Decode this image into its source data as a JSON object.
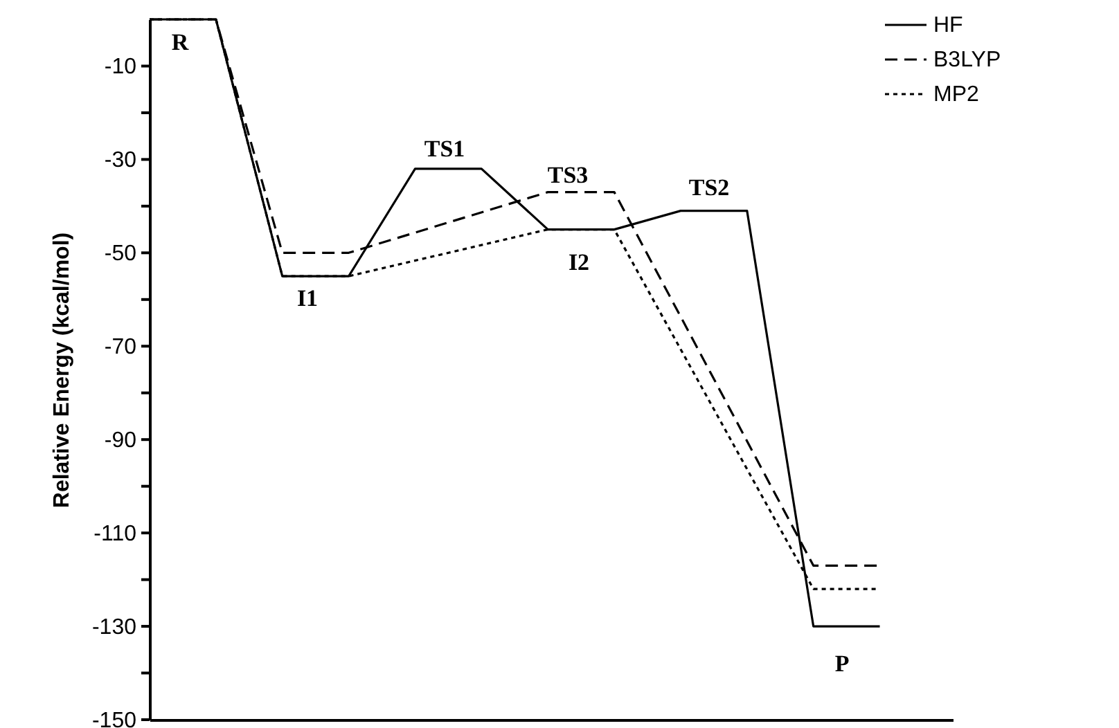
{
  "chart_data": {
    "type": "line",
    "ylabel": "Relative    Energy    (kcal/mol)",
    "categories": [
      null,
      null,
      null,
      null,
      null,
      null,
      null,
      null,
      null,
      null,
      null,
      null
    ],
    "ylim": [
      -150,
      0
    ],
    "yticks": [
      -150,
      {
        "value": -140,
        "label": null
      },
      -130,
      {
        "value": -120,
        "label": null
      },
      -110,
      {
        "value": -100,
        "label": null
      },
      -90,
      {
        "value": -80,
        "label": null
      },
      -70,
      {
        "value": -60,
        "label": null
      },
      -50,
      {
        "value": -40,
        "label": null
      },
      -30,
      {
        "value": -20,
        "label": null
      },
      -10
    ],
    "tick_labels": "y",
    "grid": false,
    "legend": "top right",
    "marker": "none",
    "series": [
      {
        "name": "HF",
        "color": "#000000",
        "line_style": "solid",
        "values": [
          0,
          0,
          -55,
          -55,
          -32,
          -32,
          -45,
          -45,
          -41,
          -41,
          -130,
          -130
        ]
      },
      {
        "name": "B3LYP",
        "color": "#000000",
        "line_style": "dashed",
        "values": [
          0,
          0,
          -50,
          -50,
          null,
          null,
          -37,
          -37,
          null,
          null,
          -117,
          -117
        ]
      },
      {
        "name": "MP2",
        "color": "#000000",
        "line_style": "dotted",
        "values": [
          0,
          0,
          -55,
          -55,
          null,
          null,
          -45,
          -45,
          null,
          null,
          -122,
          -122
        ]
      }
    ],
    "annotations": [
      "R",
      "I1",
      "TS1",
      "TS3",
      "I2",
      "TS2",
      "P"
    ]
  }
}
